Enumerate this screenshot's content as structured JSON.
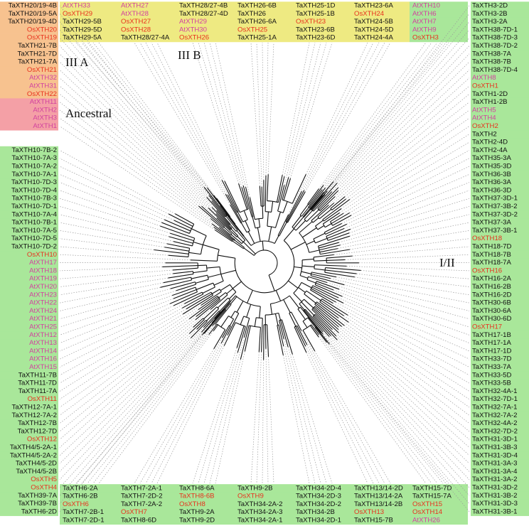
{
  "colors": {
    "Ta": "#111111",
    "Os": "#e8321e",
    "At": "#d2429f",
    "branch": "#111111",
    "dotted": "#9a9a9a"
  },
  "highlight_red": [
    "TaXTH8-6B"
  ],
  "clades": [
    {
      "name": "Ancestral",
      "color": "#f4a0a6",
      "tree": [
        [
          "AtXTH1",
          "AtXTH3"
        ],
        [
          "AtXTH2",
          "AtXTH11"
        ]
      ]
    },
    {
      "name": "III A",
      "color": "#f7c28f",
      "tree": [
        [
          "OsXTH22",
          [
            "AtXTH31",
            "AtXTH32"
          ]
        ],
        [
          "OsXTH21",
          [
            "TaXTH21-7A",
            "TaXTH21-7D",
            "TaXTH21-7B"
          ]
        ],
        [
          [
            "OsXTH19",
            "OsXTH20"
          ],
          [
            "TaXTH20/19-4D",
            "TaXTH20/19-5A",
            "TaXTH20/19-4B"
          ]
        ]
      ]
    },
    {
      "name": "III B",
      "color": "#eeea82",
      "tree": [
        [
          "AtXTH33",
          [
            "OsXTH29",
            [
              "TaXTH29-5B",
              "TaXTH29-5D",
              "TaXTH29-5A"
            ]
          ]
        ],
        [
          [
            "AtXTH27",
            "AtXTH28"
          ],
          [
            [
              "OsXTH27",
              "OsXTH28"
            ],
            [
              "TaXTH28/27-4A",
              "TaXTH28/27-4B",
              "TaXTH28/27-4D"
            ]
          ]
        ],
        [
          [
            "AtXTH29",
            "AtXTH30"
          ],
          [
            "OsXTH26",
            [
              "TaXTH26-6B",
              "TaXTH26",
              "TaXTH26-6A"
            ]
          ]
        ],
        [
          [
            "OsXTH25",
            [
              "TaXTH25-1A",
              "TaXTH25-1D",
              "TaXTH25-1B"
            ]
          ],
          [
            "OsXTH23",
            [
              "TaXTH23-6B",
              "TaXTH23-6D",
              "TaXTH23-6A"
            ]
          ]
        ],
        [
          "OsXTH24",
          [
            "TaXTH24-5B",
            "TaXTH24-5D",
            "TaXTH24-4A"
          ]
        ]
      ]
    },
    {
      "name": "I/II",
      "color": "#a9e79a",
      "tree": [
        [
          [
            [
              "AtXTH10",
              "AtXTH6"
            ],
            [
              "AtXTH7",
              "AtXTH9"
            ]
          ],
          [
            "OsXTH3",
            [
              "TaXTH3-2D",
              "TaXTH3-2B",
              "TaXTH3-2A"
            ]
          ],
          [
            [
              "TaXTH38-7D-1",
              "TaXTH38-7D-3",
              "TaXTH38-7D-2"
            ],
            [
              "TaXTH38-7A",
              "TaXTH38-7B",
              "TaXTH38-7D-4"
            ]
          ]
        ],
        [
          [
            "AtXTH8",
            [
              "OsXTH1",
              [
                "TaXTH1-2D",
                "TaXTH1-2B"
              ]
            ]
          ],
          [
            [
              "AtXTH5",
              "AtXTH4"
            ],
            [
              "OsXTH2",
              [
                "TaXTH2",
                "TaXTH2-4D",
                "TaXTH2-4A"
              ]
            ]
          ],
          [
            [
              "TaXTH35-3A",
              "TaXTH35-3D"
            ],
            [
              "TaXTH36-3B",
              "TaXTH36-3A",
              "TaXTH36-3D"
            ]
          ],
          [
            "TaXTH37-3D-1",
            "TaXTH37-3B-2",
            "TaXTH37-3D-2",
            "TaXTH37-3A",
            "TaXTH37-3B-1"
          ]
        ],
        [
          [
            "OsXTH18",
            [
              "TaXTH18-7D",
              "TaXTH18-7B",
              "TaXTH18-7A"
            ]
          ],
          [
            "OsXTH16",
            [
              "TaXTH16-2A",
              "TaXTH16-2B",
              "TaXTH16-2D"
            ]
          ],
          [
            "TaXTH30-6B",
            "TaXTH30-6A",
            "TaXTH30-6D"
          ],
          [
            "OsXTH17",
            [
              "TaXTH17-1B",
              "TaXTH17-1A",
              "TaXTH17-1D"
            ]
          ]
        ],
        [
          [
            "TaXTH33-7D",
            "TaXTH33-7A",
            "TaXTH33-5D",
            "TaXTH33-5B"
          ],
          [
            [
              "TaXTH32-4A-1",
              "TaXTH32-7D-1",
              "TaXTH32-7A-1"
            ],
            [
              "TaXTH32-7A-2",
              "TaXTH32-4A-2",
              "TaXTH32-7D-2"
            ]
          ],
          [
            [
              "TaXTH31-3D-1",
              "TaXTH31-3B-3",
              "TaXTH31-3D-4",
              "TaXTH31-3A-3"
            ],
            [
              "TaXTH31-3A-4",
              "TaXTH31-3A-2",
              "TaXTH31-3D-2"
            ],
            [
              "TaXTH31-3B-2",
              "TaXTH31-3D-3",
              "TaXTH31-3B-1"
            ]
          ]
        ],
        [
          [
            "AtXTH26",
            [
              [
                "OsXTH14",
                "OsXTH15"
              ],
              [
                "TaXTH15-7A",
                "TaXTH15-7D",
                "TaXTH15-7B"
              ]
            ]
          ],
          [
            "OsXTH13",
            [
              "TaXTH13/14-2B",
              "TaXTH13/14-2A",
              "TaXTH13/14-2D"
            ]
          ],
          [
            [
              "TaXTH34-2D-1",
              "TaXTH34-2B",
              "TaXTH34-2D-2"
            ],
            [
              "TaXTH34-2D-3",
              "TaXTH34-2D-4"
            ],
            [
              "TaXTH34-2A-1",
              "TaXTH34-2A-3",
              "TaXTH34-2A-2"
            ]
          ]
        ],
        [
          [
            "OsXTH9",
            [
              "TaXTH9-2B",
              "TaXTH9-2D",
              "TaXTH9-2A"
            ]
          ],
          [
            "OsXTH8",
            [
              "TaXTH8-6B",
              "TaXTH8-6A",
              "TaXTH8-6D"
            ]
          ],
          [
            "OsXTH7",
            [
              [
                "TaXTH7-2A-2",
                "TaXTH7-2D-2"
              ],
              [
                "TaXTH7-2A-1",
                "TaXTH7-2D-1",
                "TaXTH7-2B-1"
              ]
            ]
          ],
          [
            "OsXTH6",
            [
              "TaXTH6-2B",
              "TaXTH6-2A",
              "TaXTH6-2D"
            ]
          ],
          [
            "TaXTH39-7B",
            "TaXTH39-7A"
          ]
        ],
        [
          [
            [
              "OsXTH4",
              "OsXTH5"
            ],
            [
              [
                "TaXTH4/5-2B",
                "TaXTH4/5-2D"
              ],
              [
                "TaXTH4/5-2A-2",
                "TaXTH4/5-2A-1"
              ]
            ]
          ],
          [
            "OsXTH12",
            [
              "TaXTH12-7D",
              "TaXTH12-7B",
              "TaXTH12-7A-2",
              "TaXTH12-7A-1"
            ]
          ],
          [
            "OsXTH11",
            [
              "TaXTH11-7A",
              "TaXTH11-7D",
              "TaXTH11-7B"
            ]
          ]
        ],
        [
          [
            [
              "AtXTH15",
              "AtXTH16"
            ],
            [
              "AtXTH14",
              "AtXTH13",
              "AtXTH12"
            ]
          ],
          [
            [
              "AtXTH25",
              "AtXTH21"
            ],
            [
              "AtXTH24",
              "AtXTH22"
            ]
          ],
          [
            [
              "AtXTH23",
              "AtXTH20"
            ],
            [
              "AtXTH19",
              "AtXTH18",
              "AtXTH17"
            ]
          ]
        ],
        [
          "OsXTH10",
          [
            [
              "TaXTH10-7D-2",
              "TaXTH10-7D-5",
              "TaXTH10-7A-5",
              "TaXTH10-7B-1"
            ],
            [
              "TaXTH10-7A-4",
              "TaXTH10-7D-1",
              "TaXTH10-7B-3",
              "TaXTH10-7D-4"
            ],
            [
              "TaXTH10-7D-3",
              "TaXTH10-7A-1",
              "TaXTH10-7A-2",
              "TaXTH10-7A-3",
              "TaXTH10-7B-2"
            ]
          ]
        ]
      ]
    }
  ]
}
